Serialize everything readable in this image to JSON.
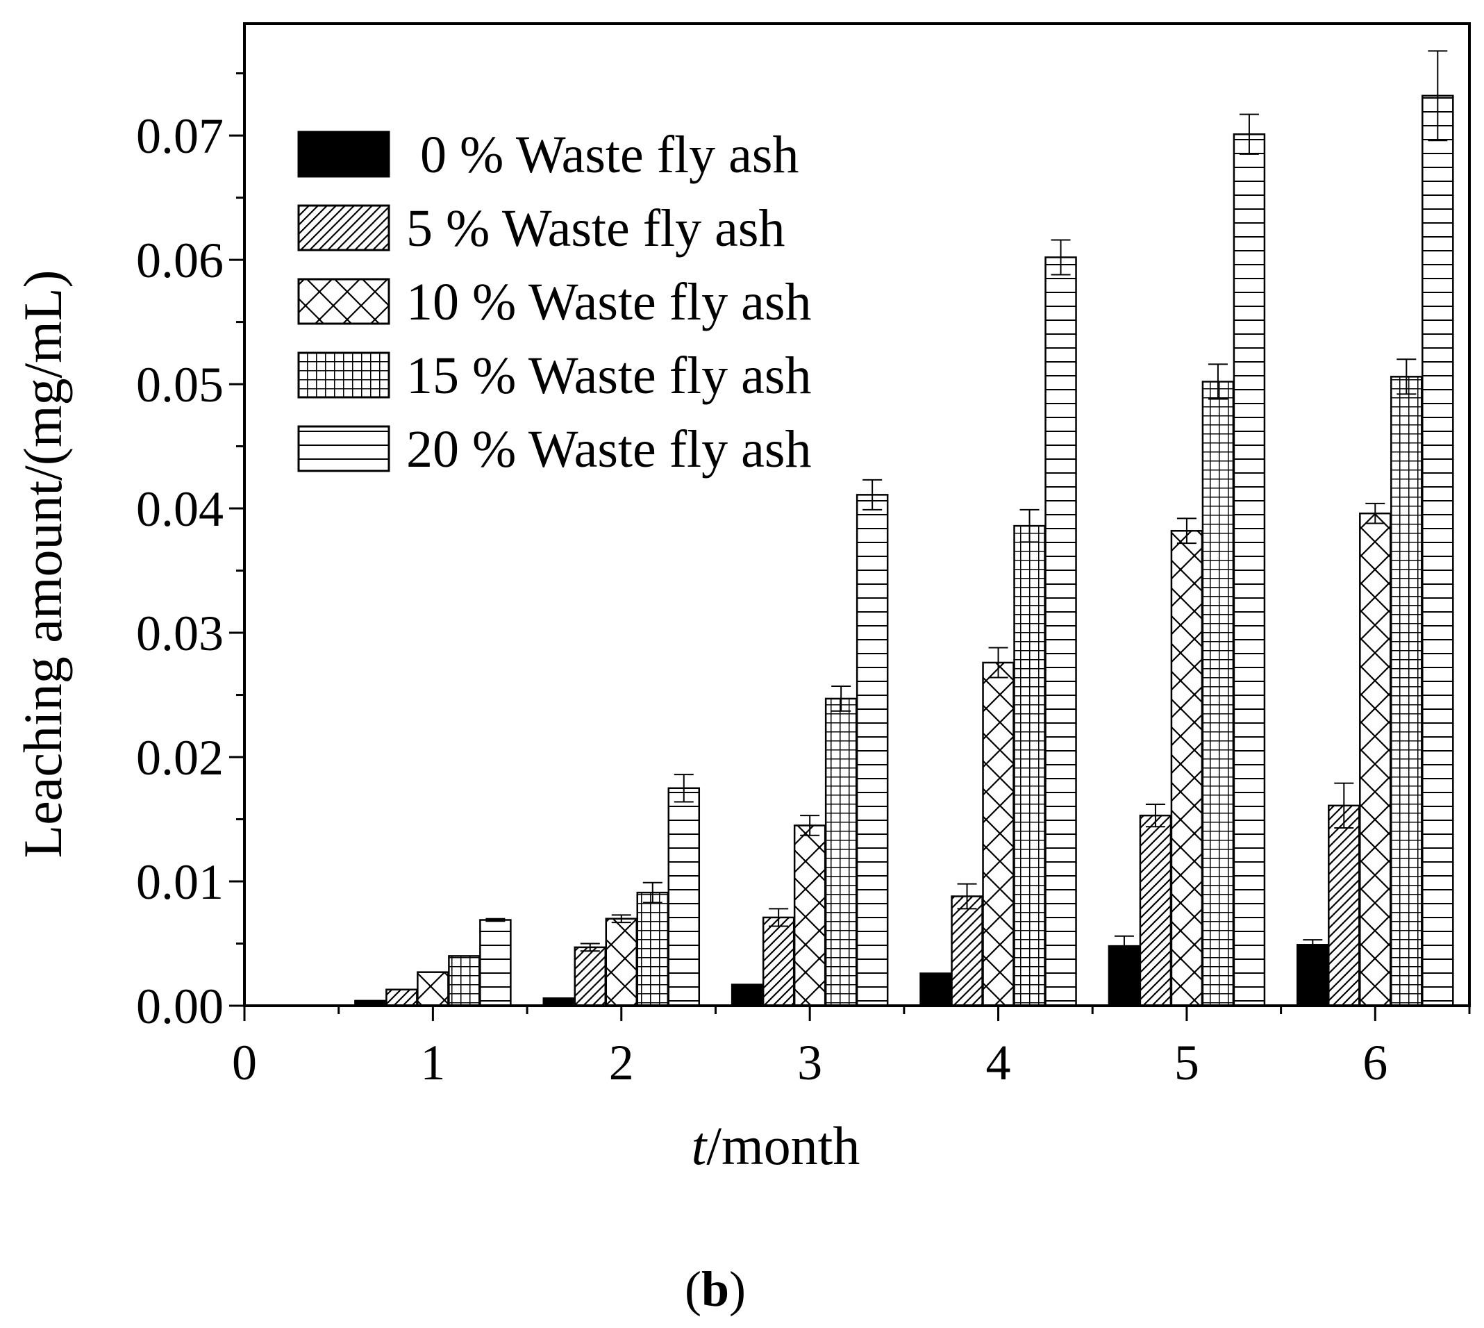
{
  "chart_data": {
    "type": "bar",
    "title": "",
    "panel_label_open": "(",
    "panel_label_letter": "b",
    "panel_label_close": ")",
    "xlabel_italic": "t",
    "xlabel_rest": "/month",
    "ylabel": "Leaching amount/(mg/mL)",
    "xlim": [
      0,
      6.5
    ],
    "ylim": [
      0,
      0.079
    ],
    "x_ticks": [
      "0",
      "1",
      "2",
      "3",
      "4",
      "5",
      "6"
    ],
    "y_ticks": [
      "0.00",
      "0.01",
      "0.02",
      "0.03",
      "0.04",
      "0.05",
      "0.06",
      "0.07"
    ],
    "categories": [
      "1",
      "2",
      "3",
      "4",
      "5",
      "6"
    ],
    "legend_position": "top-left",
    "series": [
      {
        "name": "0 % Waste fly ash",
        "pattern": "solid",
        "values": [
          0.0004,
          0.0006,
          0.0017,
          0.0026,
          0.0048,
          0.0049
        ],
        "errors": [
          0,
          0,
          0,
          0,
          0.0008,
          0.0004
        ]
      },
      {
        "name": "5 % Waste fly ash",
        "pattern": "diagonal",
        "values": [
          0.0013,
          0.0047,
          0.0071,
          0.0088,
          0.0153,
          0.0161
        ],
        "errors": [
          0,
          0.0003,
          0.0007,
          0.001,
          0.0009,
          0.0018
        ]
      },
      {
        "name": "10 % Waste fly ash",
        "pattern": "crosshatch",
        "values": [
          0.0027,
          0.007,
          0.0145,
          0.0276,
          0.0382,
          0.0396
        ],
        "errors": [
          0,
          0.0003,
          0.0008,
          0.0012,
          0.001,
          0.0008
        ]
      },
      {
        "name": "15 % Waste fly ash",
        "pattern": "grid",
        "values": [
          0.004,
          0.0091,
          0.0247,
          0.0386,
          0.0502,
          0.0506
        ],
        "errors": [
          0,
          0.0008,
          0.001,
          0.0013,
          0.0014,
          0.0014
        ]
      },
      {
        "name": "20 % Waste fly ash",
        "pattern": "horizontal",
        "values": [
          0.0069,
          0.0175,
          0.0411,
          0.0602,
          0.0701,
          0.0732
        ],
        "errors": [
          0.0001,
          0.0011,
          0.0012,
          0.0014,
          0.0016,
          0.0036
        ]
      }
    ],
    "colors": {
      "axis": "#000000",
      "bar_fill": "#ffffff",
      "solid_fill": "#000000",
      "background": "#ffffff"
    }
  }
}
